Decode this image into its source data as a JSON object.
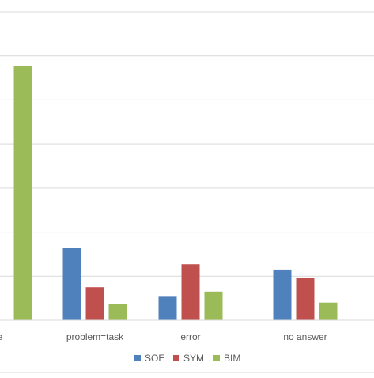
{
  "chart_data": {
    "type": "bar",
    "categories": [
      "e",
      "problem=task",
      "error",
      "no answer"
    ],
    "series": [
      {
        "name": "SOE",
        "color": "#4F81BD",
        "values": [
          null,
          1.65,
          0.55,
          1.15
        ]
      },
      {
        "name": "SYM",
        "color": "#C0504D",
        "values": [
          null,
          0.75,
          1.27,
          0.96
        ]
      },
      {
        "name": "BIM",
        "color": "#9BBB59",
        "values": [
          5.78,
          0.37,
          0.65,
          0.4
        ]
      }
    ],
    "ylim": [
      0,
      7
    ],
    "grid": true,
    "legend_position": "bottom-center",
    "title": "",
    "xlabel": "",
    "ylabel": ""
  }
}
